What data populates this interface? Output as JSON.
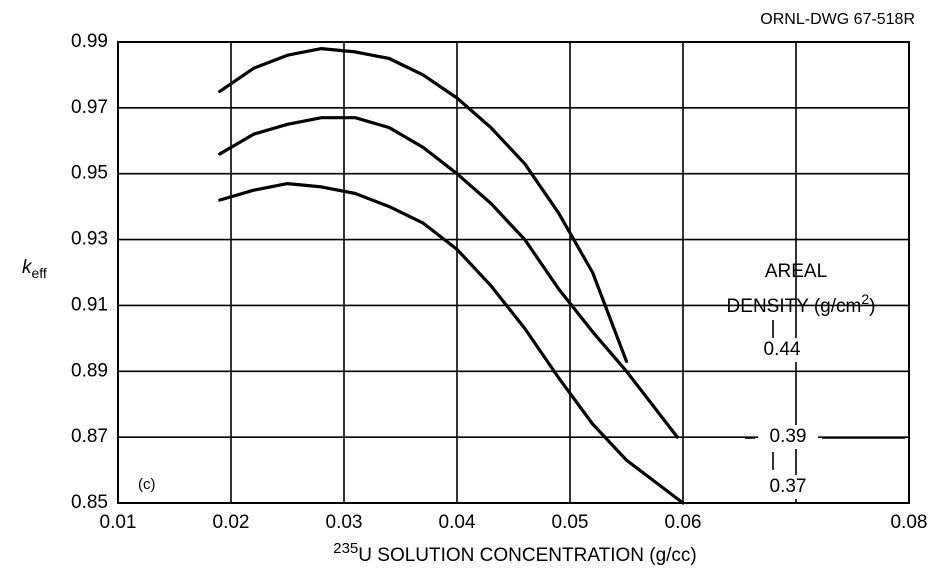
{
  "chart_data": {
    "type": "line",
    "figure_id": "ORNL-DWG 67-518R",
    "panel_label": "(c)",
    "y_label": "k",
    "y_label_sub": "eff",
    "x_label_sup": "235",
    "x_label": "U SOLUTION CONCENTRATION (g/cc)",
    "legend_title": "AREAL",
    "legend_subtitle": "DENSITY (g/cm",
    "legend_subtitle_sup": "2",
    "legend_subtitle_end": ")",
    "xlim": [
      0.01,
      0.08
    ],
    "xticks": [
      0.01,
      0.02,
      0.03,
      0.04,
      0.05,
      0.06,
      {
        "value": 0.07,
        "label": null
      },
      0.08
    ],
    "ylim": [
      0.85,
      0.99
    ],
    "yticks": [
      0.85,
      0.87,
      0.89,
      0.91,
      0.93,
      0.95,
      0.97,
      0.99
    ],
    "grid": true,
    "series": [
      {
        "name": "0.44",
        "color": "#000000",
        "x": [
          0.019,
          0.022,
          0.025,
          0.028,
          0.031,
          0.034,
          0.037,
          0.04,
          0.043,
          0.046,
          0.049,
          0.052,
          0.055
        ],
        "values": [
          0.975,
          0.982,
          0.986,
          0.988,
          0.987,
          0.985,
          0.98,
          0.973,
          0.964,
          0.953,
          0.938,
          0.92,
          0.893
        ]
      },
      {
        "name": "0.39",
        "color": "#000000",
        "x": [
          0.019,
          0.022,
          0.025,
          0.028,
          0.031,
          0.034,
          0.037,
          0.04,
          0.043,
          0.046,
          0.049,
          0.052,
          0.055,
          0.0595
        ],
        "values": [
          0.956,
          0.962,
          0.965,
          0.967,
          0.967,
          0.964,
          0.958,
          0.95,
          0.941,
          0.93,
          0.915,
          0.902,
          0.89,
          0.87
        ]
      },
      {
        "name": "0.37",
        "color": "#000000",
        "x": [
          0.019,
          0.022,
          0.025,
          0.028,
          0.031,
          0.034,
          0.037,
          0.04,
          0.043,
          0.046,
          0.049,
          0.052,
          0.055,
          0.06
        ],
        "values": [
          0.942,
          0.945,
          0.947,
          0.946,
          0.944,
          0.94,
          0.935,
          0.927,
          0.916,
          0.903,
          0.888,
          0.874,
          0.863,
          0.85
        ]
      }
    ]
  }
}
